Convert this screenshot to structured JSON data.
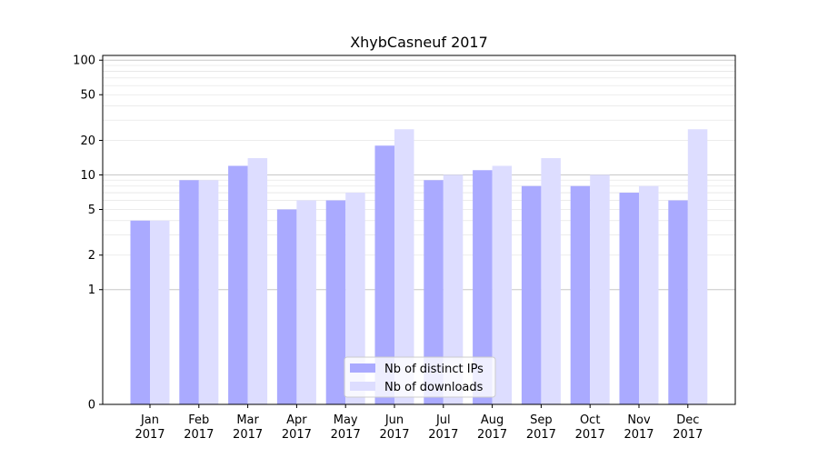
{
  "chart_data": {
    "type": "bar",
    "title": "XhybCasneuf 2017",
    "xlabel": "",
    "ylabel": "",
    "yscale": "symlog",
    "ylim": [
      0,
      110
    ],
    "yticks": [
      0,
      1,
      2,
      5,
      10,
      20,
      50,
      100
    ],
    "grid": true,
    "legend_position": "bottom-center",
    "categories": [
      [
        "Jan",
        "2017"
      ],
      [
        "Feb",
        "2017"
      ],
      [
        "Mar",
        "2017"
      ],
      [
        "Apr",
        "2017"
      ],
      [
        "May",
        "2017"
      ],
      [
        "Jun",
        "2017"
      ],
      [
        "Jul",
        "2017"
      ],
      [
        "Aug",
        "2017"
      ],
      [
        "Sep",
        "2017"
      ],
      [
        "Oct",
        "2017"
      ],
      [
        "Nov",
        "2017"
      ],
      [
        "Dec",
        "2017"
      ]
    ],
    "series": [
      {
        "name": "Nb of distinct IPs",
        "color": "#aaaaff",
        "values": [
          4,
          9,
          12,
          5,
          6,
          18,
          9,
          11,
          8,
          8,
          7,
          6
        ]
      },
      {
        "name": "Nb of downloads",
        "color": "#ddddff",
        "values": [
          4,
          9,
          14,
          6,
          7,
          25,
          10,
          12,
          14,
          10,
          8,
          25
        ]
      }
    ]
  }
}
